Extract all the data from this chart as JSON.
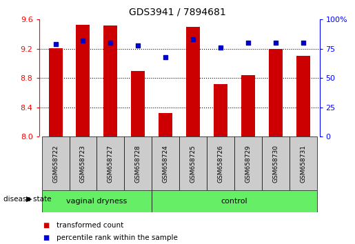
{
  "title": "GDS3941 / 7894681",
  "samples": [
    "GSM658722",
    "GSM658723",
    "GSM658727",
    "GSM658728",
    "GSM658724",
    "GSM658725",
    "GSM658726",
    "GSM658729",
    "GSM658730",
    "GSM658731"
  ],
  "red_values": [
    9.21,
    9.53,
    9.52,
    8.9,
    8.32,
    9.5,
    8.72,
    8.84,
    9.2,
    9.1
  ],
  "blue_values": [
    79,
    82,
    80,
    78,
    68,
    83,
    76,
    80,
    80,
    80
  ],
  "ylim_left": [
    8.0,
    9.6
  ],
  "ylim_right": [
    0,
    100
  ],
  "yticks_left": [
    8.0,
    8.4,
    8.8,
    9.2,
    9.6
  ],
  "yticks_right": [
    0,
    25,
    50,
    75,
    100
  ],
  "ytick_labels_right": [
    "0",
    "25",
    "50",
    "75",
    "100%"
  ],
  "vd_samples": [
    "GSM658722",
    "GSM658723",
    "GSM658727",
    "GSM658728"
  ],
  "ctrl_samples": [
    "GSM658724",
    "GSM658725",
    "GSM658726",
    "GSM658729",
    "GSM658730",
    "GSM658731"
  ],
  "bar_color": "#CC0000",
  "dot_color": "#0000CC",
  "background_color": "#ffffff",
  "green_color": "#66EE66",
  "box_color": "#CCCCCC",
  "label_transformed": "transformed count",
  "label_percentile": "percentile rank within the sample",
  "disease_state_label": "disease state",
  "bar_width": 0.5
}
